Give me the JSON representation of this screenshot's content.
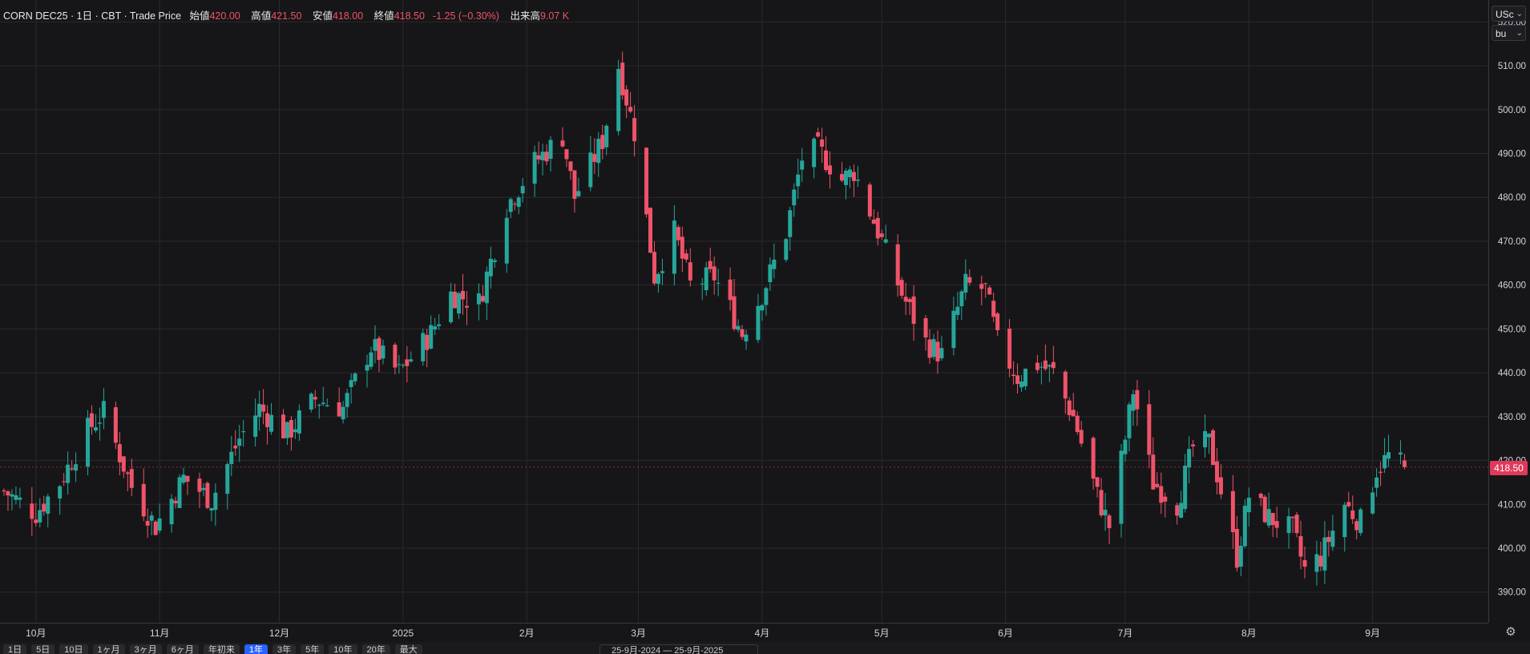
{
  "header": {
    "symbol": "CORN DEC25 · 1日 · CBT · Trade Price",
    "open_label": "始値",
    "open": "420.00",
    "high_label": "高値",
    "high": "421.50",
    "low_label": "安値",
    "low": "418.00",
    "close_label": "終値",
    "close": "418.50",
    "change": "-1.25 (−0.30%)",
    "volume_label": "出来高",
    "volume": "9.07 K"
  },
  "unit_selectors": {
    "currency": "USc",
    "unit": "bu"
  },
  "last_price_tag": "418.50",
  "colors": {
    "up": "#26a69a",
    "down": "#ef5369",
    "background": "#161618",
    "grid": "#2a2a2e",
    "accent": "#2962ff"
  },
  "toolbar": {
    "ranges": [
      "1日",
      "5日",
      "10日",
      "1ヶ月",
      "3ヶ月",
      "6ヶ月",
      "年初来",
      "1年",
      "3年",
      "5年",
      "10年",
      "20年",
      "最大"
    ],
    "active_range": "1年",
    "date_range": "25-9月-2024 — 25-9月-2025"
  },
  "chart_data": {
    "type": "candlestick",
    "title": "CORN DEC25",
    "ylim": [
      383,
      525
    ],
    "y_ticks": [
      390,
      400,
      410,
      420,
      430,
      440,
      450,
      460,
      470,
      480,
      490,
      500,
      510,
      520
    ],
    "x_ticks": [
      "10月",
      "11月",
      "12月",
      "2025",
      "2月",
      "3月",
      "4月",
      "5月",
      "6月",
      "7月",
      "8月",
      "9月"
    ],
    "x_tick_dates": [
      "2024-10-01",
      "2024-11-01",
      "2024-12-01",
      "2025-01-01",
      "2025-02-01",
      "2025-03-01",
      "2025-04-01",
      "2025-05-01",
      "2025-06-01",
      "2025-07-01",
      "2025-08-01",
      "2025-09-01"
    ],
    "x_range": [
      "2024-09-22",
      "2025-09-30"
    ],
    "key_points": [
      {
        "date": "2024-09-23",
        "close": 413
      },
      {
        "date": "2024-10-01",
        "close": 408
      },
      {
        "date": "2024-10-07",
        "close": 415
      },
      {
        "date": "2024-10-14",
        "close": 427
      },
      {
        "date": "2024-10-18",
        "close": 431
      },
      {
        "date": "2024-10-25",
        "close": 414
      },
      {
        "date": "2024-10-31",
        "close": 405
      },
      {
        "date": "2024-11-07",
        "close": 416
      },
      {
        "date": "2024-11-14",
        "close": 411
      },
      {
        "date": "2024-11-21",
        "close": 425
      },
      {
        "date": "2024-11-26",
        "close": 432
      },
      {
        "date": "2024-12-03",
        "close": 426
      },
      {
        "date": "2024-12-10",
        "close": 434
      },
      {
        "date": "2024-12-17",
        "close": 432
      },
      {
        "date": "2024-12-24",
        "close": 446
      },
      {
        "date": "2024-12-31",
        "close": 440
      },
      {
        "date": "2025-01-08",
        "close": 449
      },
      {
        "date": "2025-01-13",
        "close": 458
      },
      {
        "date": "2025-01-20",
        "close": 456
      },
      {
        "date": "2025-01-27",
        "close": 478
      },
      {
        "date": "2025-02-03",
        "close": 488
      },
      {
        "date": "2025-02-10",
        "close": 494
      },
      {
        "date": "2025-02-13",
        "close": 480
      },
      {
        "date": "2025-02-20",
        "close": 493
      },
      {
        "date": "2025-02-24",
        "close": 510
      },
      {
        "date": "2025-02-28",
        "close": 495
      },
      {
        "date": "2025-03-05",
        "close": 462
      },
      {
        "date": "2025-03-10",
        "close": 472
      },
      {
        "date": "2025-03-14",
        "close": 460
      },
      {
        "date": "2025-03-20",
        "close": 462
      },
      {
        "date": "2025-03-27",
        "close": 449
      },
      {
        "date": "2025-04-01",
        "close": 458
      },
      {
        "date": "2025-04-07",
        "close": 472
      },
      {
        "date": "2025-04-11",
        "close": 489
      },
      {
        "date": "2025-04-15",
        "close": 491
      },
      {
        "date": "2025-04-21",
        "close": 484
      },
      {
        "date": "2025-04-24",
        "close": 486
      },
      {
        "date": "2025-05-01",
        "close": 470
      },
      {
        "date": "2025-05-06",
        "close": 458
      },
      {
        "date": "2025-05-12",
        "close": 447
      },
      {
        "date": "2025-05-16",
        "close": 444
      },
      {
        "date": "2025-05-22",
        "close": 460
      },
      {
        "date": "2025-05-27",
        "close": 459
      },
      {
        "date": "2025-05-30",
        "close": 447
      },
      {
        "date": "2025-06-04",
        "close": 439
      },
      {
        "date": "2025-06-09",
        "close": 442
      },
      {
        "date": "2025-06-13",
        "close": 440
      },
      {
        "date": "2025-06-18",
        "close": 430
      },
      {
        "date": "2025-06-24",
        "close": 412
      },
      {
        "date": "2025-06-27",
        "close": 405
      },
      {
        "date": "2025-07-01",
        "close": 425
      },
      {
        "date": "2025-07-03",
        "close": 436
      },
      {
        "date": "2025-07-08",
        "close": 415
      },
      {
        "date": "2025-07-14",
        "close": 410
      },
      {
        "date": "2025-07-18",
        "close": 423
      },
      {
        "date": "2025-07-22",
        "close": 424
      },
      {
        "date": "2025-07-24",
        "close": 417
      },
      {
        "date": "2025-07-29",
        "close": 398
      },
      {
        "date": "2025-08-01",
        "close": 412
      },
      {
        "date": "2025-08-06",
        "close": 407
      },
      {
        "date": "2025-08-12",
        "close": 404
      },
      {
        "date": "2025-08-15",
        "close": 395
      },
      {
        "date": "2025-08-19",
        "close": 398
      },
      {
        "date": "2025-08-25",
        "close": 410
      },
      {
        "date": "2025-08-29",
        "close": 406
      },
      {
        "date": "2025-09-02",
        "close": 418
      },
      {
        "date": "2025-09-05",
        "close": 421
      },
      {
        "date": "2025-09-09",
        "close": 418.5
      }
    ],
    "last": {
      "open": 420.0,
      "high": 421.5,
      "low": 418.0,
      "close": 418.5
    }
  }
}
